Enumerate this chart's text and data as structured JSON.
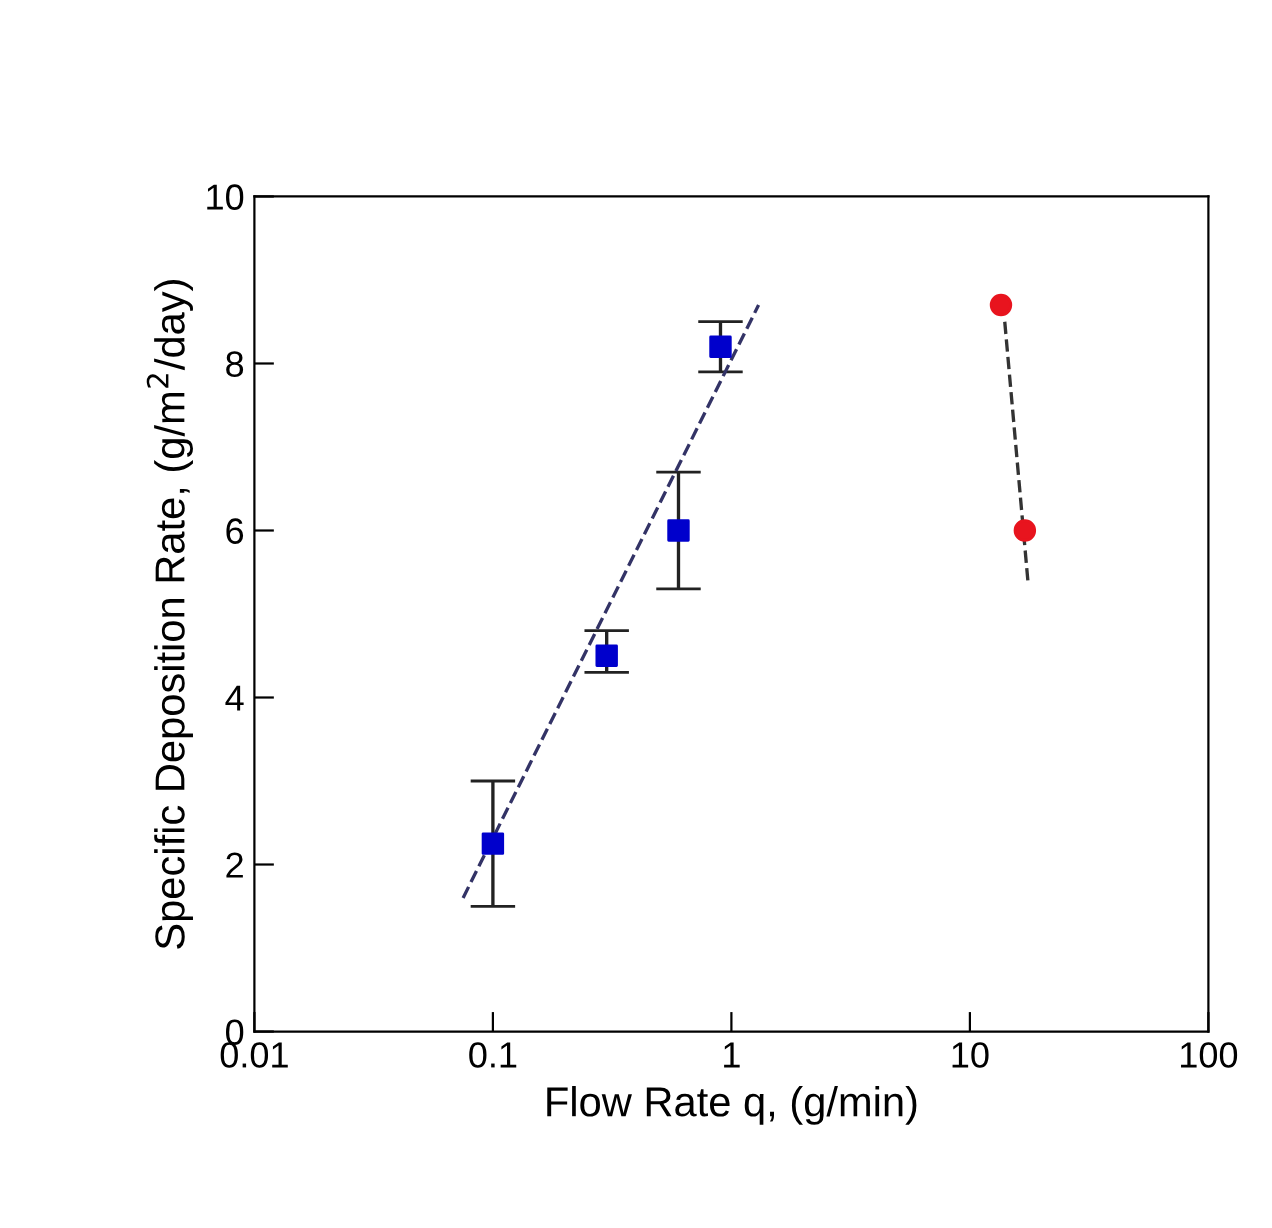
{
  "chart_data": {
    "type": "scatter",
    "xlabel": "Flow Rate q, (g/min)",
    "ylabel": "Specific Deposition Rate, (g/m$^{2}$/day)",
    "log": "x",
    "xlim": [
      0.01,
      100
    ],
    "ylim": [
      0,
      10
    ],
    "xticks": [
      0.01,
      0.1,
      1,
      10,
      100
    ],
    "yticks": [
      0,
      2,
      4,
      6,
      8,
      10
    ],
    "grid": false,
    "series": [
      {
        "color": "#0000cc",
        "marker": "square",
        "x": [
          0.1,
          0.3,
          0.6,
          0.9
        ],
        "values": [
          2.25,
          4.5,
          6.0,
          8.2
        ],
        "errors": [
          [
            1.5,
            3.0
          ],
          [
            4.3,
            4.8
          ],
          [
            5.3,
            6.7
          ],
          [
            7.9,
            8.5
          ]
        ]
      },
      {
        "color": "#e8141e",
        "marker": "circle",
        "x": [
          13.5,
          17
        ],
        "values": [
          8.7,
          6.0
        ]
      },
      {
        "type": "line",
        "color": "#333366",
        "line_style": "dashed",
        "marker": "none",
        "x": [
          0.075,
          1.3
        ],
        "values": [
          1.6,
          8.7
        ]
      },
      {
        "type": "line",
        "color": "#333333",
        "line_style": "dashed",
        "marker": "none",
        "x": [
          14,
          17.5
        ],
        "values": [
          8.5,
          5.4
        ]
      }
    ]
  }
}
